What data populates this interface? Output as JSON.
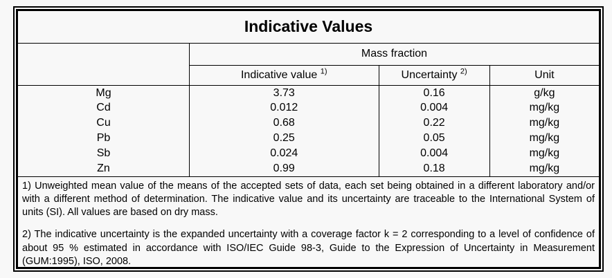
{
  "title": "Indicative Values",
  "table": {
    "group_header": "Mass fraction",
    "columns": {
      "indicative_value": {
        "label": "Indicative value",
        "sup": "1)"
      },
      "uncertainty": {
        "label": "Uncertainty",
        "sup": "2)"
      },
      "unit": {
        "label": "Unit"
      }
    },
    "rows": [
      {
        "element": "Mg",
        "value": "3.73",
        "uncertainty": "0.16",
        "unit": "g/kg"
      },
      {
        "element": "Cd",
        "value": "0.012",
        "uncertainty": "0.004",
        "unit": "mg/kg"
      },
      {
        "element": "Cu",
        "value": "0.68",
        "uncertainty": "0.22",
        "unit": "mg/kg"
      },
      {
        "element": "Pb",
        "value": "0.25",
        "uncertainty": "0.05",
        "unit": "mg/kg"
      },
      {
        "element": "Sb",
        "value": "0.024",
        "uncertainty": "0.004",
        "unit": "mg/kg"
      },
      {
        "element": "Zn",
        "value": "0.99",
        "uncertainty": "0.18",
        "unit": "mg/kg"
      }
    ]
  },
  "footnotes": [
    "1) Unweighted mean value of the means of the accepted sets of data, each set being obtained in a different laboratory and/or with a different method of determination. The indicative value and its uncertainty are traceable to the International System of units (SI). All values are based on dry mass.",
    "2) The indicative uncertainty is the expanded uncertainty with a coverage factor k = 2 corresponding to a level of confidence of about 95 % estimated in accordance with ISO/IEC Guide 98-3, Guide to the Expression of Uncertainty in Measurement (GUM:1995), ISO, 2008."
  ],
  "colors": {
    "background": "#f8f8f8",
    "border": "#000000",
    "text": "#000000"
  }
}
